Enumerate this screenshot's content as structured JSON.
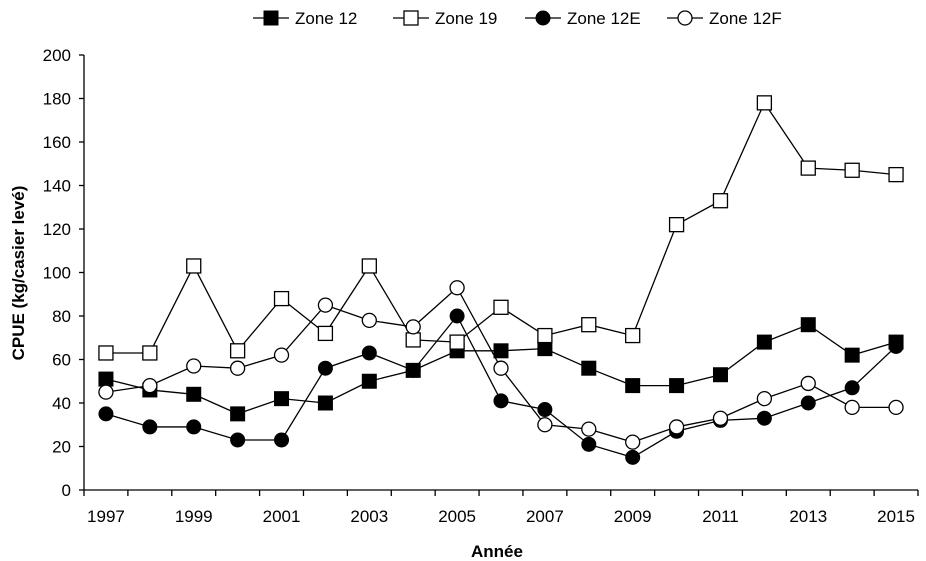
{
  "chart_data": {
    "type": "line",
    "title": "",
    "xlabel": "Année",
    "ylabel": "CPUE (kg/casier levé)",
    "x": [
      1997,
      1998,
      1999,
      2000,
      2001,
      2002,
      2003,
      2004,
      2005,
      2006,
      2007,
      2008,
      2009,
      2010,
      2011,
      2012,
      2013,
      2014,
      2015
    ],
    "xticks": [
      1997,
      1999,
      2001,
      2003,
      2005,
      2007,
      2009,
      2011,
      2013,
      2015
    ],
    "xlim": [
      1997,
      2015
    ],
    "ylim": [
      0,
      200
    ],
    "yticks": [
      0,
      20,
      40,
      60,
      80,
      100,
      120,
      140,
      160,
      180,
      200
    ],
    "grid": false,
    "legend_position": "top",
    "series": [
      {
        "name": "Zone 12",
        "marker": "filled-square",
        "values": [
          51,
          46,
          44,
          35,
          42,
          40,
          50,
          55,
          64,
          64,
          65,
          56,
          48,
          48,
          53,
          68,
          76,
          62,
          68
        ]
      },
      {
        "name": "Zone 19",
        "marker": "open-square",
        "values": [
          63,
          63,
          103,
          64,
          88,
          72,
          103,
          69,
          68,
          84,
          71,
          76,
          71,
          122,
          133,
          178,
          148,
          147,
          145
        ]
      },
      {
        "name": "Zone 12E",
        "marker": "filled-circle",
        "values": [
          35,
          29,
          29,
          23,
          23,
          56,
          63,
          55,
          80,
          41,
          37,
          21,
          15,
          27,
          32,
          33,
          40,
          47,
          66
        ]
      },
      {
        "name": "Zone 12F",
        "marker": "open-circle",
        "values": [
          45,
          48,
          57,
          56,
          62,
          85,
          78,
          75,
          93,
          56,
          30,
          28,
          22,
          29,
          33,
          42,
          49,
          38,
          38
        ]
      }
    ]
  },
  "colors": {
    "line": "#000000",
    "marker_fill": "#000000",
    "marker_open_fill": "#ffffff"
  }
}
